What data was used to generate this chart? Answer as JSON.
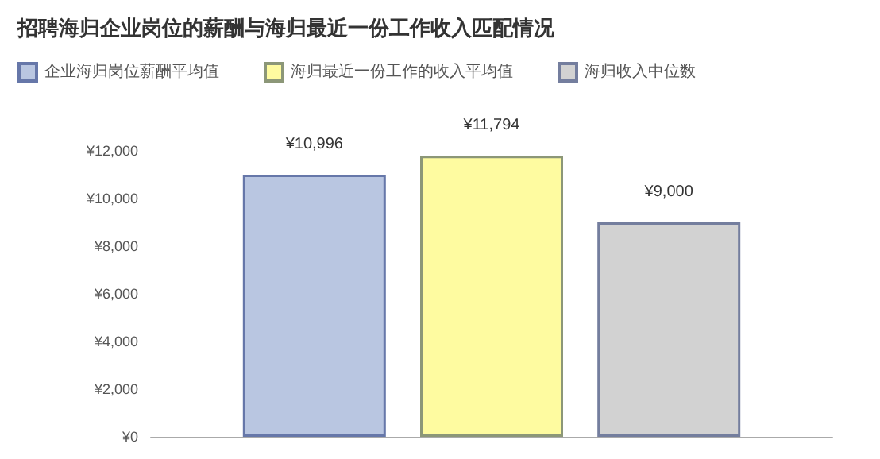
{
  "chart_data": {
    "type": "bar",
    "title": "招聘海归企业岗位的薪酬与海归最近一份工作收入匹配情况",
    "categories": [
      null
    ],
    "series": [
      {
        "name": "企业海归岗位薪酬平均值",
        "color": "#b9c6e1",
        "values": [
          10996
        ],
        "value_labels": [
          "¥10,996"
        ]
      },
      {
        "name": "海归最近一份工作的收入平均值",
        "color": "#fefba0",
        "values": [
          11794
        ],
        "value_labels": [
          "¥11,794"
        ]
      },
      {
        "name": "海归收入中位数",
        "color": "#d2d2d2",
        "values": [
          9000
        ],
        "value_labels": [
          "¥9,000"
        ]
      }
    ],
    "ylim": [
      0,
      12000
    ],
    "yticks": [
      {
        "value": 0,
        "label": "¥0"
      },
      {
        "value": 2000,
        "label": "¥2,000"
      },
      {
        "value": 4000,
        "label": "¥4,000"
      },
      {
        "value": 6000,
        "label": "¥6,000"
      },
      {
        "value": 8000,
        "label": "¥8,000"
      },
      {
        "value": 10000,
        "label": "¥10,000"
      },
      {
        "value": 12000,
        "label": "¥12,000"
      }
    ],
    "grid": false,
    "legend": "top left"
  }
}
